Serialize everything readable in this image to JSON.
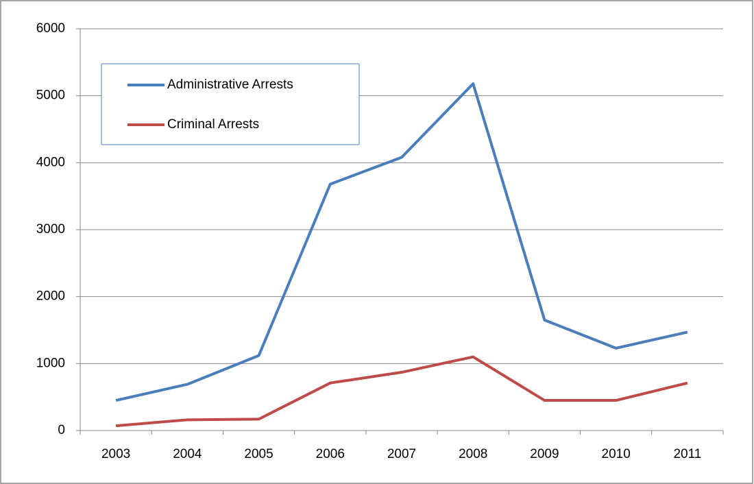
{
  "chart_data": {
    "type": "line",
    "categories": [
      "2003",
      "2004",
      "2005",
      "2006",
      "2007",
      "2008",
      "2009",
      "2010",
      "2011"
    ],
    "series": [
      {
        "name": "Administrative Arrests",
        "color": "#4a7ebb",
        "values": [
          450,
          690,
          1120,
          3680,
          4080,
          5180,
          1650,
          1230,
          1470
        ]
      },
      {
        "name": "Criminal Arrests",
        "color": "#be4b48",
        "values": [
          70,
          160,
          170,
          710,
          870,
          1100,
          450,
          450,
          710
        ]
      }
    ],
    "ylim": [
      0,
      6000
    ],
    "yticks": [
      0,
      1000,
      2000,
      3000,
      4000,
      5000,
      6000
    ],
    "grid": true,
    "legend": "top-left"
  }
}
